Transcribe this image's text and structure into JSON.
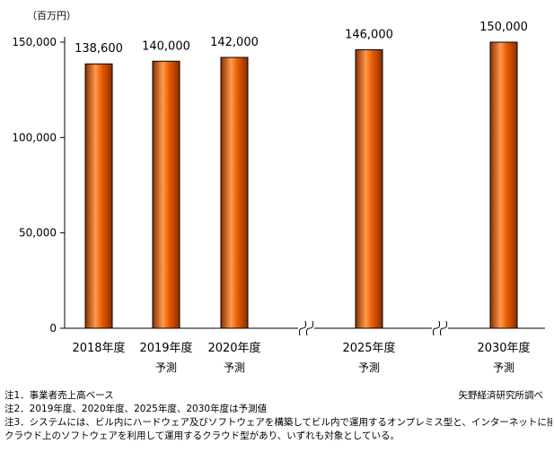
{
  "chart_data": {
    "type": "bar",
    "unit_label": "（百万円）",
    "categories": [
      {
        "label": "2018年度",
        "sub": ""
      },
      {
        "label": "2019年度",
        "sub": "予測"
      },
      {
        "label": "2020年度",
        "sub": "予測"
      },
      {
        "label": "2025年度",
        "sub": "予測"
      },
      {
        "label": "2030年度",
        "sub": "予測"
      }
    ],
    "values": [
      138600,
      140000,
      142000,
      146000,
      150000
    ],
    "data_labels": [
      "138,600",
      "140,000",
      "142,000",
      "146,000",
      "150,000"
    ],
    "ylim": [
      0,
      150000
    ],
    "yticks": [
      0,
      50000,
      100000,
      150000
    ],
    "ytick_labels": [
      "0",
      "50,000",
      "100,000",
      "150,000"
    ],
    "axis_breaks_after_categories": [
      2,
      3
    ],
    "grid": false,
    "bar_color": "#e85a00",
    "bar_highlight_color": "#ff9a4d",
    "bar_dark_color": "#8a2f00"
  },
  "notes": [
    "注1．事業者売上高ベース",
    "注2．2019年度、2020年度、2025年度、2030年度は予測値",
    "注3．システムには、ビル内にハードウェア及びソフトウェアを構築してビル内で運用するオンプレミス型と、インターネットに接続された",
    "クラウド上のソフトウェアを利用して運用するクラウド型があり、いずれも対象としている。"
  ],
  "source": "矢野経済研究所調べ"
}
